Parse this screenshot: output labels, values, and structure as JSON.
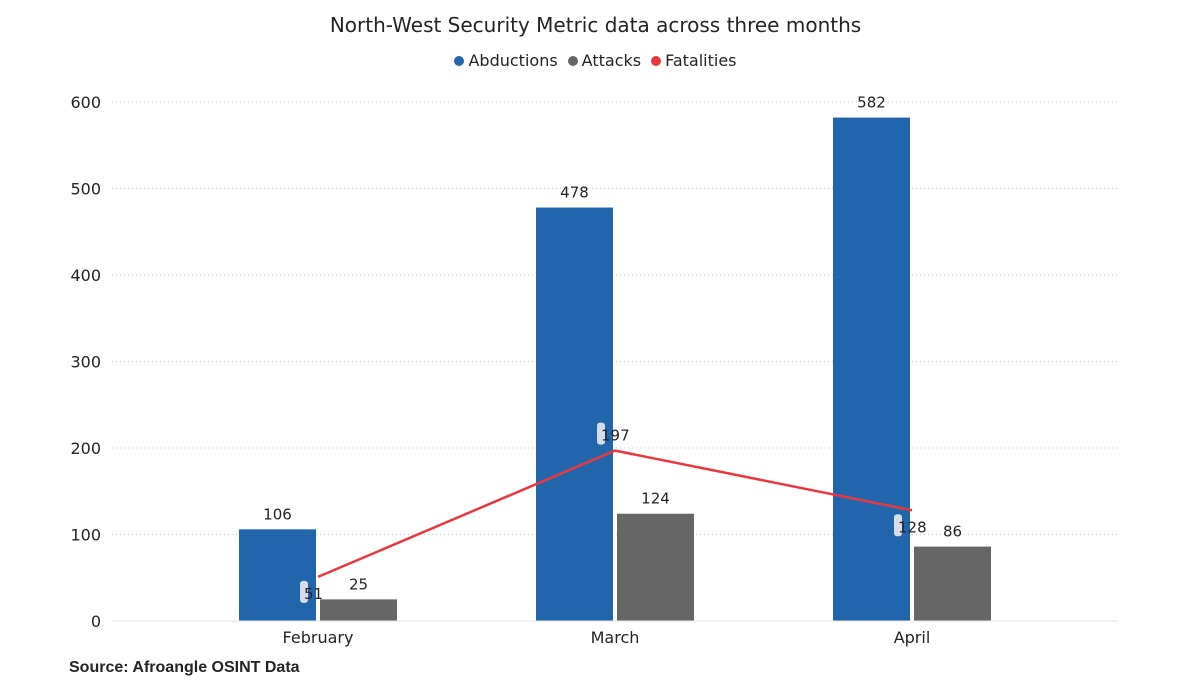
{
  "chart_data": {
    "type": "bar",
    "title": "North-West Security Metric data across three months",
    "categories": [
      "February",
      "March",
      "April"
    ],
    "series": [
      {
        "name": "Abductions",
        "type": "bar",
        "color": "#2166AC",
        "values": [
          106,
          478,
          582
        ]
      },
      {
        "name": "Attacks",
        "type": "bar",
        "color": "#666666",
        "values": [
          25,
          124,
          86
        ]
      },
      {
        "name": "Fatalities",
        "type": "line",
        "color": "#E8383D",
        "values": [
          51,
          197,
          128
        ]
      }
    ],
    "ylim": [
      0,
      600
    ],
    "yticks": [
      "0",
      "100",
      "200",
      "300",
      "400",
      "500",
      "600"
    ],
    "grid": true,
    "legend": "top-center"
  },
  "source": "Source: Afroangle OSINT Data"
}
